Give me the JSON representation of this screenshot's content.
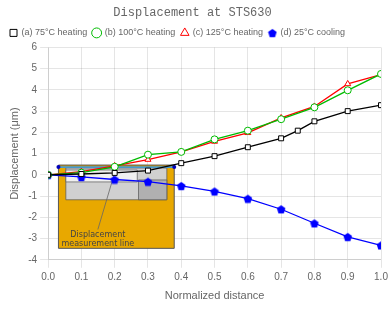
{
  "chart_data": {
    "type": "line",
    "title": "Displacement at STS630",
    "xlabel": "Normalized distance",
    "ylabel": "Displacement (μm)",
    "xlim": [
      0,
      1.0
    ],
    "ylim": [
      -4,
      6
    ],
    "xticks": [
      {
        "value": 0.0,
        "label": "0.0"
      },
      0.1,
      0.2,
      0.3,
      0.4,
      0.5,
      0.6,
      0.7,
      0.8,
      0.9,
      {
        "value": 1.0,
        "label": "1.0"
      }
    ],
    "yticks": [
      -4,
      -3,
      -2,
      -1,
      0,
      1,
      2,
      3,
      4,
      5,
      6
    ],
    "grid": true,
    "legend": "upper left",
    "series": [
      {
        "name": "(a) 75°C heating",
        "color": "#000000",
        "marker": "square",
        "line_style": "solid",
        "x": [
          0.0,
          0.1,
          0.2,
          0.3,
          0.4,
          0.5,
          0.6,
          0.7,
          0.75,
          0.8,
          0.9,
          1.0
        ],
        "values": [
          0.0,
          0.04,
          0.09,
          0.2,
          0.55,
          0.88,
          1.3,
          1.72,
          2.08,
          2.52,
          3.0,
          3.28
        ]
      },
      {
        "name": "(b) 100°C heating",
        "color": "#00bb00",
        "marker": "circle",
        "line_style": "solid",
        "x": [
          0.0,
          0.1,
          0.2,
          0.3,
          0.4,
          0.5,
          0.6,
          0.7,
          0.8,
          0.9,
          1.0
        ],
        "values": [
          0.0,
          0.1,
          0.38,
          0.95,
          1.08,
          1.67,
          2.08,
          2.62,
          3.18,
          3.98,
          4.75
        ]
      },
      {
        "name": "(c) 125°C heating",
        "color": "#ff0000",
        "marker": "triangle",
        "line_style": "solid",
        "x": [
          0.0,
          0.1,
          0.2,
          0.3,
          0.4,
          0.5,
          0.6,
          0.7,
          0.8,
          0.9,
          1.0
        ],
        "values": [
          0.0,
          0.15,
          0.42,
          0.72,
          1.08,
          1.57,
          1.98,
          2.68,
          3.22,
          4.28,
          4.72
        ]
      },
      {
        "name": "(d) 25°C cooling",
        "color": "#0000ff",
        "marker": "pentagon",
        "line_style": "solid",
        "x": [
          0.0,
          0.1,
          0.2,
          0.3,
          0.4,
          0.5,
          0.6,
          0.7,
          0.8,
          0.9,
          1.0
        ],
        "values": [
          0.0,
          -0.1,
          -0.22,
          -0.32,
          -0.52,
          -0.78,
          -1.12,
          -1.62,
          -2.28,
          -2.92,
          -3.32
        ]
      }
    ],
    "annotations": [
      "Displacement\nmeasurement line"
    ]
  }
}
